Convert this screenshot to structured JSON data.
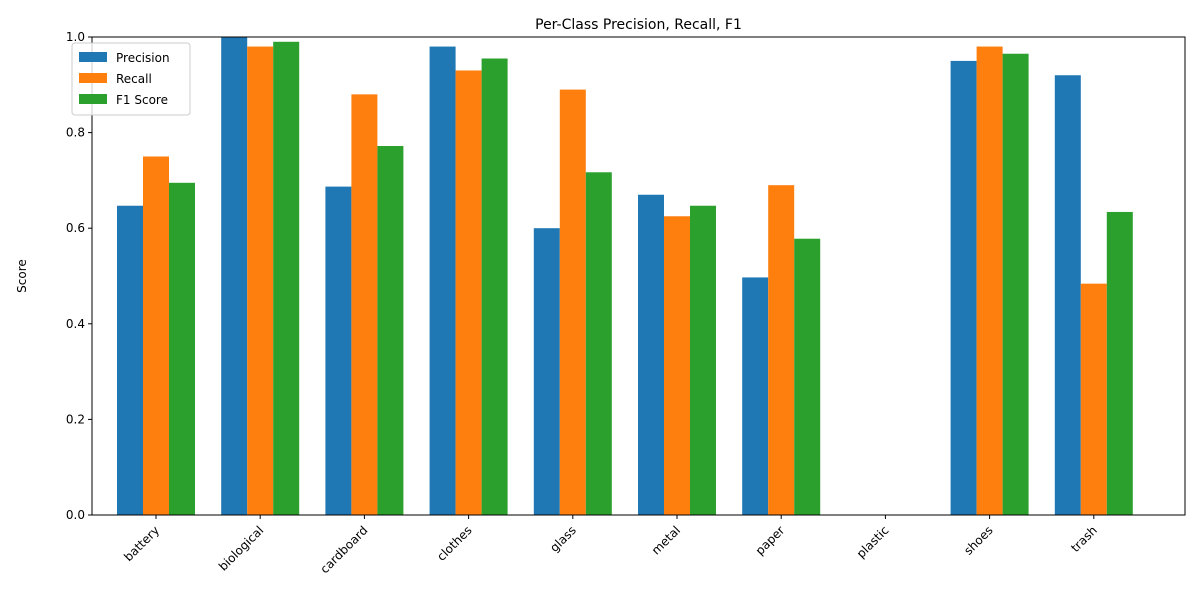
{
  "chart_data": {
    "type": "bar",
    "title": "Per-Class Precision, Recall, F1",
    "xlabel": "",
    "ylabel": "Score",
    "ylim": [
      0,
      1.0
    ],
    "yticks": [
      0.0,
      0.2,
      0.4,
      0.6,
      0.8,
      1.0
    ],
    "ytick_labels": [
      "0.0",
      "0.2",
      "0.4",
      "0.6",
      "0.8",
      "1.0"
    ],
    "categories": [
      "battery",
      "biological",
      "cardboard",
      "clothes",
      "glass",
      "metal",
      "paper",
      "plastic",
      "shoes",
      "trash"
    ],
    "series": [
      {
        "name": "Precision",
        "color": "#1f77b4",
        "values": [
          0.647,
          1.0,
          0.687,
          0.98,
          0.6,
          0.67,
          0.497,
          0.0,
          0.95,
          0.92
        ]
      },
      {
        "name": "Recall",
        "color": "#ff7f0e",
        "values": [
          0.75,
          0.98,
          0.88,
          0.93,
          0.89,
          0.625,
          0.69,
          0.0,
          0.98,
          0.484
        ]
      },
      {
        "name": "F1 Score",
        "color": "#2ca02c",
        "values": [
          0.695,
          0.99,
          0.772,
          0.955,
          0.717,
          0.647,
          0.578,
          0.0,
          0.965,
          0.634
        ]
      }
    ],
    "legend_position": "top-left",
    "grid": false
  }
}
